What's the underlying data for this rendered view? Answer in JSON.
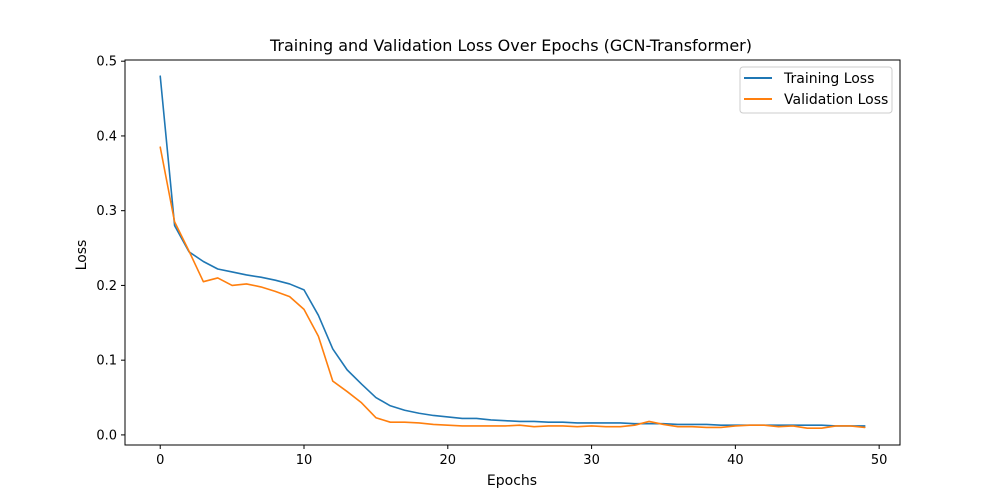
{
  "chart_data": {
    "type": "line",
    "title": "Training and Validation Loss Over Epochs (GCN-Transformer)",
    "xlabel": "Epochs",
    "ylabel": "Loss",
    "xlim": [
      -2.45,
      51.45
    ],
    "ylim": [
      -0.0135,
      0.5016
    ],
    "xticks": [
      0,
      10,
      20,
      30,
      40,
      50
    ],
    "yticks": [
      0.0,
      0.1,
      0.2,
      0.3,
      0.4,
      0.5
    ],
    "xtick_labels": [
      "0",
      "10",
      "20",
      "30",
      "40",
      "50"
    ],
    "ytick_labels": [
      "0.0",
      "0.1",
      "0.2",
      "0.3",
      "0.4",
      "0.5"
    ],
    "grid": false,
    "legend_position": "top-right",
    "x": [
      0,
      1,
      2,
      3,
      4,
      5,
      6,
      7,
      8,
      9,
      10,
      11,
      12,
      13,
      14,
      15,
      16,
      17,
      18,
      19,
      20,
      21,
      22,
      23,
      24,
      25,
      26,
      27,
      28,
      29,
      30,
      31,
      32,
      33,
      34,
      35,
      36,
      37,
      38,
      39,
      40,
      41,
      42,
      43,
      44,
      45,
      46,
      47,
      48,
      49
    ],
    "series": [
      {
        "name": "Training Loss",
        "color": "#1f77b4",
        "values": [
          0.48,
          0.28,
          0.245,
          0.232,
          0.222,
          0.218,
          0.214,
          0.211,
          0.207,
          0.202,
          0.194,
          0.16,
          0.115,
          0.087,
          0.068,
          0.05,
          0.039,
          0.033,
          0.029,
          0.026,
          0.024,
          0.022,
          0.022,
          0.02,
          0.019,
          0.018,
          0.018,
          0.017,
          0.017,
          0.016,
          0.016,
          0.016,
          0.016,
          0.015,
          0.015,
          0.015,
          0.014,
          0.014,
          0.014,
          0.013,
          0.013,
          0.013,
          0.013,
          0.013,
          0.013,
          0.013,
          0.013,
          0.012,
          0.012,
          0.012
        ]
      },
      {
        "name": "Validation Loss",
        "color": "#ff7f0e",
        "values": [
          0.385,
          0.285,
          0.246,
          0.205,
          0.21,
          0.2,
          0.202,
          0.198,
          0.192,
          0.185,
          0.168,
          0.132,
          0.072,
          0.058,
          0.043,
          0.023,
          0.017,
          0.017,
          0.016,
          0.014,
          0.013,
          0.012,
          0.012,
          0.012,
          0.012,
          0.013,
          0.011,
          0.012,
          0.012,
          0.011,
          0.012,
          0.011,
          0.011,
          0.013,
          0.018,
          0.014,
          0.011,
          0.011,
          0.01,
          0.01,
          0.012,
          0.013,
          0.013,
          0.011,
          0.012,
          0.009,
          0.009,
          0.012,
          0.012,
          0.01
        ]
      }
    ]
  }
}
